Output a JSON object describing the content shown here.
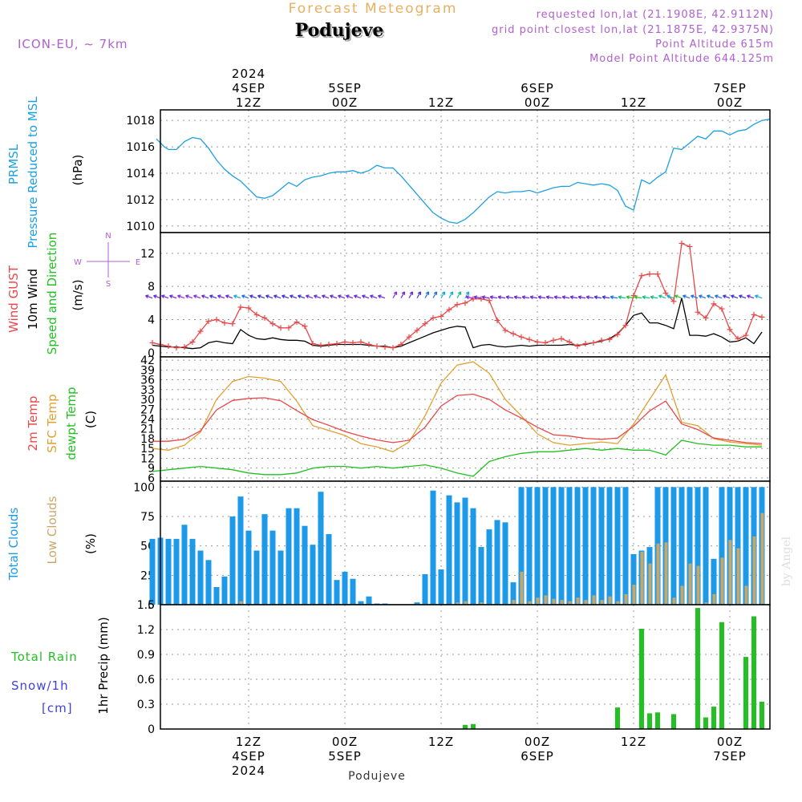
{
  "header": {
    "subtitle": "Forecast Meteogram",
    "title": "Podujeve",
    "model": "ICON-EU, ~ 7km",
    "requested": "requested lon,lat (21.1908E, 42.9112N)",
    "gridpoint": "grid point closest lon,lat (21.1875E, 42.9375N)",
    "point_alt": "Point Altitude 615m",
    "model_alt": "Model Point Altitude 644.125m",
    "footer": "Podujeve",
    "credit": "by Angel"
  },
  "time_axis": {
    "ticks": [
      {
        "hour": 12,
        "top": [
          "2024",
          "4SEP",
          "12Z"
        ],
        "bottom": [
          "12Z",
          "4SEP",
          "2024"
        ]
      },
      {
        "hour": 24,
        "top": [
          "5SEP",
          "00Z"
        ],
        "bottom": [
          "00Z",
          "5SEP"
        ]
      },
      {
        "hour": 36,
        "top": [
          "12Z"
        ],
        "bottom": [
          "12Z"
        ]
      },
      {
        "hour": 48,
        "top": [
          "6SEP",
          "00Z"
        ],
        "bottom": [
          "00Z",
          "6SEP"
        ]
      },
      {
        "hour": 60,
        "top": [
          "12Z"
        ],
        "bottom": [
          "12Z"
        ]
      },
      {
        "hour": 72,
        "top": [
          "7SEP",
          "00Z"
        ],
        "bottom": [
          "00Z",
          "7SEP"
        ]
      }
    ],
    "range_hours": [
      1,
      77
    ]
  },
  "panel_labels": {
    "pressure": [
      "PRMSL",
      "Pressure Reduced to MSL"
    ],
    "pressure_unit": "(hPa)",
    "wind_gust": "Wind GUST",
    "wind_10m": "10m Wind",
    "wind_dir": "Speed and Direction",
    "wind_unit": "(m/s)",
    "compass": {
      "n": "N",
      "s": "S",
      "w": "W",
      "e": "E"
    },
    "temp_2m": "2m Temp",
    "temp_sfc": "SFC Temp",
    "temp_dew": "dewpt Temp",
    "temp_unit": "(C)",
    "total_clouds": "Total Clouds",
    "low_clouds": "Low Clouds",
    "cloud_unit": "(%)",
    "total_rain": "Total  Rain",
    "snow": "Snow/1h",
    "snow_unit": "[cm]",
    "precip": "1hr Precip (mm)"
  },
  "colors": {
    "pressure": "#1ca0e0",
    "gust": "#e84848",
    "wind": "#000000",
    "temp2m": "#e84848",
    "sfc": "#e0a030",
    "dew": "#22c022",
    "total_clouds": "#1c9ae8",
    "low_clouds": "#c8a868",
    "rain": "#22c022",
    "snow": "#4040e0",
    "header_violet": "#b060d0",
    "title_orange": "#e8b060"
  },
  "chart_data": [
    {
      "type": "line",
      "title": "PRMSL",
      "ylabel": "(hPa)",
      "yticks": [
        1010,
        1012,
        1014,
        1016,
        1018
      ],
      "ylim": [
        1009.5,
        1018.8
      ],
      "x": [
        0.5,
        1,
        1.5,
        2,
        3,
        4,
        5,
        6,
        7,
        8,
        9,
        10,
        11,
        12,
        13,
        14,
        15,
        16,
        17,
        18,
        19,
        20,
        21,
        22,
        23,
        24,
        25,
        26,
        27,
        28,
        29,
        30,
        31,
        32,
        33,
        34,
        35,
        36,
        37,
        38,
        39,
        40,
        41,
        42,
        43,
        44,
        45,
        46,
        47,
        48,
        49,
        50,
        51,
        52,
        53,
        54,
        55,
        56,
        57,
        58,
        59,
        60,
        61,
        62,
        63,
        64,
        65,
        66,
        67,
        68,
        69,
        70,
        71,
        72,
        73,
        74,
        75,
        76,
        77
      ],
      "series": [
        {
          "values": [
            1016.6,
            1016.3,
            1016.0,
            1015.8,
            1015.8,
            1016.4,
            1016.7,
            1016.6,
            1015.9,
            1015.0,
            1014.3,
            1013.8,
            1013.4,
            1012.8,
            1012.2,
            1012.1,
            1012.3,
            1012.8,
            1013.3,
            1013.0,
            1013.5,
            1013.7,
            1013.8,
            1014.0,
            1014.1,
            1014.1,
            1014.2,
            1014.0,
            1014.2,
            1014.6,
            1014.4,
            1014.4,
            1013.8,
            1013.1,
            1012.4,
            1011.7,
            1011.0,
            1010.6,
            1010.3,
            1010.2,
            1010.5,
            1011.0,
            1011.6,
            1012.2,
            1012.6,
            1012.5,
            1012.6,
            1012.6,
            1012.7,
            1012.5,
            1012.7,
            1012.9,
            1013.0,
            1013.0,
            1013.3,
            1013.2,
            1013.1,
            1013.2,
            1013.1,
            1012.7,
            1011.5,
            1011.2,
            1013.5,
            1013.2,
            1013.7,
            1014.1,
            1015.9,
            1015.8,
            1016.3,
            1016.8,
            1016.6,
            1017.2,
            1017.2,
            1016.9,
            1017.2,
            1017.3,
            1017.7,
            1018.0,
            1018.1
          ]
        }
      ]
    },
    {
      "type": "line",
      "title": "Wind GUST / 10m Wind",
      "ylabel": "(m/s)",
      "yticks": [
        0,
        4,
        8,
        12
      ],
      "ylim": [
        -0.5,
        14.5
      ],
      "x": [
        0,
        1,
        2,
        3,
        4,
        5,
        6,
        7,
        8,
        9,
        10,
        11,
        12,
        13,
        14,
        15,
        16,
        17,
        18,
        19,
        20,
        21,
        22,
        23,
        24,
        25,
        26,
        27,
        28,
        29,
        30,
        31,
        32,
        33,
        34,
        35,
        36,
        37,
        38,
        39,
        40,
        41,
        42,
        43,
        44,
        45,
        46,
        47,
        48,
        49,
        50,
        51,
        52,
        53,
        54,
        55,
        56,
        57,
        58,
        59,
        60,
        61,
        62,
        63,
        64,
        65,
        66,
        67,
        68,
        69,
        70,
        71,
        72,
        73,
        74,
        75,
        76
      ],
      "series": [
        {
          "name": "Wind GUST",
          "values": [
            1.2,
            1.0,
            0.8,
            0.6,
            0.7,
            1.3,
            2.6,
            3.8,
            4.0,
            3.6,
            3.5,
            5.5,
            5.4,
            4.6,
            4.2,
            3.5,
            3.0,
            3.0,
            3.7,
            3.2,
            1.1,
            0.9,
            1.0,
            1.1,
            1.3,
            1.2,
            1.3,
            1.0,
            0.8,
            0.7,
            0.6,
            1.0,
            1.9,
            2.7,
            3.5,
            4.2,
            4.4,
            5.2,
            5.8,
            6.0,
            6.5,
            6.5,
            6.3,
            3.9,
            2.7,
            2.3,
            1.9,
            1.6,
            1.3,
            1.2,
            1.5,
            1.7,
            1.3,
            0.8,
            1.1,
            1.2,
            1.5,
            1.6,
            2.2,
            3.3,
            6.9,
            9.3,
            9.5,
            9.5,
            7.2,
            6.2,
            13.2,
            12.8,
            4.9,
            4.2,
            5.9,
            5.3,
            2.8,
            1.7,
            2.1,
            4.6,
            4.3
          ]
        },
        {
          "name": "10m Wind",
          "values": [
            0.9,
            0.8,
            0.7,
            0.7,
            0.6,
            0.5,
            0.6,
            1.2,
            1.4,
            1.2,
            1.1,
            2.8,
            2.1,
            1.7,
            1.6,
            1.8,
            1.6,
            1.5,
            1.5,
            1.4,
            0.9,
            0.8,
            0.9,
            1.0,
            1.0,
            1.0,
            1.0,
            0.9,
            0.8,
            0.8,
            0.6,
            0.8,
            1.2,
            1.6,
            2.0,
            2.4,
            2.7,
            3.0,
            3.2,
            3.1,
            0.6,
            0.9,
            1.0,
            0.8,
            0.7,
            0.8,
            0.9,
            0.8,
            0.9,
            0.9,
            0.9,
            0.9,
            1.0,
            0.9,
            1.0,
            1.2,
            1.4,
            1.7,
            2.3,
            3.3,
            4.5,
            4.8,
            3.6,
            3.6,
            3.3,
            2.9,
            6.6,
            2.1,
            2.1,
            2.0,
            2.3,
            1.9,
            1.3,
            1.4,
            1.8,
            1.1,
            2.5
          ]
        }
      ]
    },
    {
      "type": "line",
      "title": "2m Temp / SFC Temp / dewpt Temp",
      "ylabel": "(C)",
      "yticks": [
        6,
        9,
        12,
        15,
        18,
        21,
        24,
        27,
        30,
        33,
        36,
        39,
        42
      ],
      "ylim": [
        5,
        43
      ],
      "x": [
        0,
        2,
        4,
        6,
        8,
        10,
        12,
        14,
        16,
        18,
        20,
        22,
        24,
        26,
        28,
        30,
        32,
        34,
        36,
        38,
        40,
        42,
        44,
        46,
        48,
        50,
        52,
        54,
        56,
        58,
        60,
        62,
        64,
        66,
        68,
        70,
        72,
        74,
        76
      ],
      "series": [
        {
          "name": "2m Temp",
          "values": [
            17.2,
            17.2,
            17.8,
            20.4,
            26.8,
            29.7,
            30.3,
            30.5,
            29.6,
            26.6,
            23.8,
            22.1,
            20.2,
            18.8,
            17.6,
            16.8,
            17.5,
            21.5,
            28.0,
            31.2,
            31.6,
            30.0,
            26.8,
            24.3,
            21.5,
            19.2,
            18.8,
            18.1,
            17.8,
            18.2,
            21.8,
            26.5,
            29.5,
            22.5,
            20.8,
            18.2,
            17.5,
            16.8,
            16.5
          ]
        },
        {
          "name": "SFC Temp",
          "values": [
            15.0,
            14.5,
            16.0,
            20.0,
            30.0,
            35.5,
            37.0,
            36.5,
            35.5,
            29.5,
            22.0,
            20.5,
            19.0,
            16.5,
            15.5,
            14.0,
            17.0,
            25.0,
            35.0,
            40.5,
            41.5,
            38.0,
            30.0,
            25.0,
            19.5,
            16.8,
            16.0,
            16.5,
            17.0,
            16.5,
            22.5,
            30.0,
            37.5,
            23.0,
            22.0,
            18.0,
            17.0,
            16.5,
            16.0
          ]
        },
        {
          "name": "dewpt Temp",
          "values": [
            8.0,
            8.5,
            9.0,
            9.5,
            9.0,
            8.5,
            7.5,
            7.0,
            7.0,
            7.5,
            9.0,
            9.5,
            9.5,
            9.0,
            9.5,
            9.0,
            9.5,
            10.0,
            9.0,
            7.5,
            6.5,
            11.0,
            12.5,
            13.5,
            14.0,
            14.0,
            14.5,
            15.0,
            14.5,
            15.0,
            14.5,
            14.5,
            13.0,
            17.5,
            16.5,
            16.0,
            16.0,
            15.5,
            15.5
          ]
        }
      ]
    },
    {
      "type": "bar",
      "title": "Total Clouds / Low Clouds",
      "ylabel": "(%)",
      "yticks": [
        0,
        25,
        50,
        75,
        100
      ],
      "ylim": [
        0,
        105
      ],
      "x": [
        0,
        1,
        2,
        3,
        4,
        5,
        6,
        7,
        8,
        9,
        10,
        11,
        12,
        13,
        14,
        15,
        16,
        17,
        18,
        19,
        20,
        21,
        22,
        23,
        24,
        25,
        26,
        27,
        28,
        29,
        30,
        31,
        32,
        33,
        34,
        35,
        36,
        37,
        38,
        39,
        40,
        41,
        42,
        43,
        44,
        45,
        46,
        47,
        48,
        49,
        50,
        51,
        52,
        53,
        54,
        55,
        56,
        57,
        58,
        59,
        60,
        61,
        62,
        63,
        64,
        65,
        66,
        67,
        68,
        69,
        70,
        71,
        72,
        73,
        74,
        75,
        76
      ],
      "series": [
        {
          "name": "Total Clouds",
          "values": [
            56,
            57,
            56,
            56,
            68,
            56,
            46,
            38,
            15,
            24,
            75,
            92,
            63,
            46,
            77,
            63,
            46,
            82,
            82,
            67,
            51,
            96,
            60,
            21,
            28,
            22,
            3,
            7,
            1,
            1,
            0,
            0,
            0,
            2,
            26,
            97,
            30,
            93,
            87,
            91,
            82,
            49,
            64,
            72,
            70,
            19,
            100,
            100,
            100,
            100,
            100,
            100,
            100,
            100,
            100,
            100,
            100,
            100,
            100,
            100,
            43,
            46,
            49,
            100,
            100,
            100,
            100,
            100,
            100,
            100,
            39,
            100,
            100,
            100,
            100,
            100,
            100
          ]
        },
        {
          "name": "Low Clouds",
          "values": [
            0,
            0,
            0,
            0,
            0,
            0,
            0,
            0,
            0,
            0,
            0,
            3,
            0,
            0,
            0,
            0,
            0,
            0,
            0,
            0,
            0,
            0,
            0,
            0,
            0,
            0,
            0,
            0,
            0,
            0,
            0,
            0,
            0,
            0,
            0,
            0,
            0,
            0,
            2,
            3,
            0,
            2,
            0,
            0,
            0,
            4,
            28,
            3,
            6,
            8,
            5,
            4,
            3,
            6,
            4,
            8,
            4,
            7,
            3,
            9,
            17,
            45,
            35,
            52,
            53,
            6,
            16,
            35,
            33,
            2,
            9,
            40,
            55,
            48,
            16,
            58,
            78
          ]
        }
      ]
    },
    {
      "type": "bar",
      "title": "1hr Precip",
      "ylabel": "1hr Precip (mm)",
      "yticks": [
        0,
        0.3,
        0.6,
        0.9,
        1.2,
        1.5
      ],
      "ylim": [
        0,
        1.5
      ],
      "x": [
        39,
        40,
        58,
        61,
        62,
        63,
        65,
        68,
        69,
        70,
        71,
        72,
        74,
        75,
        76,
        77
      ],
      "series": [
        {
          "name": "Total Rain",
          "values": [
            0.05,
            0.06,
            0.26,
            1.21,
            0.19,
            0.2,
            0.18,
            1.46,
            0.14,
            0.27,
            1.29,
            0.0,
            0.87,
            1.36,
            0.33,
            0.0
          ]
        }
      ]
    }
  ]
}
